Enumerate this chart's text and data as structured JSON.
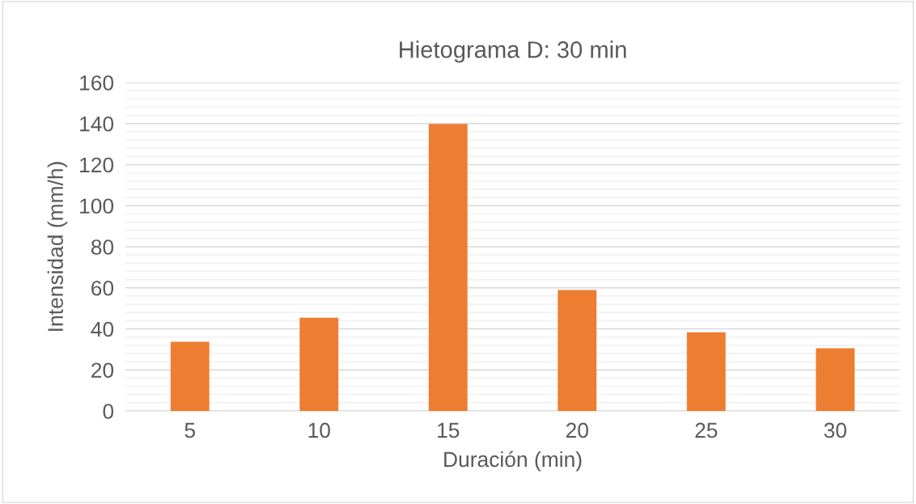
{
  "chart_data": {
    "type": "bar",
    "title": "Hietograma D: 30 min",
    "xlabel": "Duración (min)",
    "ylabel": "Intensidad (mm/h)",
    "categories": [
      "5",
      "10",
      "15",
      "20",
      "25",
      "30"
    ],
    "values": [
      33.7,
      45.4,
      139.8,
      58.9,
      38.3,
      30.5
    ],
    "color": "#ed7d31",
    "ylim": [
      0,
      160
    ],
    "yticks": [
      0,
      {
        "value": 4,
        "label": null
      },
      {
        "value": 8,
        "label": null
      },
      {
        "value": 12,
        "label": null
      },
      {
        "value": 16,
        "label": null
      },
      20,
      {
        "value": 24,
        "label": null
      },
      {
        "value": 28,
        "label": null
      },
      {
        "value": 32,
        "label": null
      },
      {
        "value": 36,
        "label": null
      },
      40,
      {
        "value": 44,
        "label": null
      },
      {
        "value": 48,
        "label": null
      },
      {
        "value": 52,
        "label": null
      },
      {
        "value": 56,
        "label": null
      },
      60,
      {
        "value": 64,
        "label": null
      },
      {
        "value": 68,
        "label": null
      },
      {
        "value": 72,
        "label": null
      },
      {
        "value": 76,
        "label": null
      },
      80,
      {
        "value": 84,
        "label": null
      },
      {
        "value": 88,
        "label": null
      },
      {
        "value": 92,
        "label": null
      },
      {
        "value": 96,
        "label": null
      },
      100,
      {
        "value": 104,
        "label": null
      },
      {
        "value": 108,
        "label": null
      },
      {
        "value": 112,
        "label": null
      },
      {
        "value": 116,
        "label": null
      },
      120,
      {
        "value": 124,
        "label": null
      },
      {
        "value": 128,
        "label": null
      },
      {
        "value": 132,
        "label": null
      },
      {
        "value": 136,
        "label": null
      },
      140,
      {
        "value": 144,
        "label": null
      },
      {
        "value": 148,
        "label": null
      },
      {
        "value": 152,
        "label": null
      },
      {
        "value": 156,
        "label": null
      },
      160
    ],
    "grid": "y"
  }
}
